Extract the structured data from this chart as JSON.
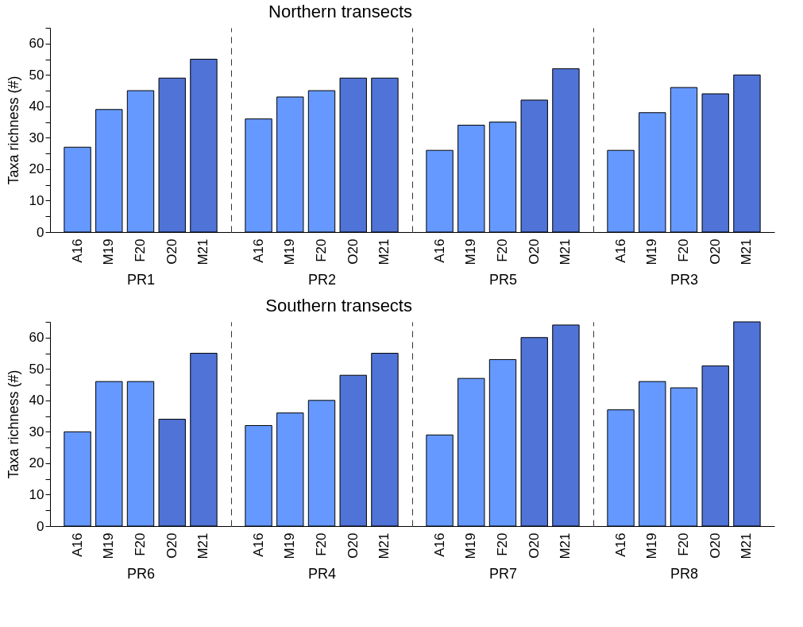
{
  "chart_data": [
    {
      "type": "bar",
      "ylabel": "Taxa richness (#)",
      "xlabel": "PR1",
      "categories": [
        "A16",
        "M19",
        "F20",
        "O20",
        "M21"
      ],
      "values": [
        27,
        39,
        45,
        49,
        55
      ],
      "colors": [
        "#6699ff",
        "#6699ff",
        "#6699ff",
        "#4f73d6",
        "#4f73d6"
      ],
      "ylim": [
        0,
        65
      ],
      "yticks": [
        0,
        {
          "value": 5,
          "label": null
        },
        10,
        {
          "value": 15,
          "label": null
        },
        20,
        {
          "value": 25,
          "label": null
        },
        30,
        {
          "value": 35,
          "label": null
        },
        40,
        {
          "value": 45,
          "label": null
        },
        50,
        {
          "value": 55,
          "label": null
        },
        60,
        {
          "value": 65,
          "label": null
        }
      ]
    },
    {
      "type": "bar",
      "title": "Northern transects",
      "xlabel": "PR2",
      "categories": [
        "A16",
        "M19",
        "F20",
        "O20",
        "M21"
      ],
      "values": [
        36,
        43,
        45,
        49,
        49
      ],
      "colors": [
        "#6699ff",
        "#6699ff",
        "#6699ff",
        "#4f73d6",
        "#4f73d6"
      ],
      "ylim": [
        0,
        65
      ],
      "tick_labels": "x"
    },
    {
      "type": "bar",
      "xlabel": "PR5",
      "categories": [
        "A16",
        "M19",
        "F20",
        "O20",
        "M21"
      ],
      "values": [
        26,
        34,
        35,
        42,
        52
      ],
      "colors": [
        "#6699ff",
        "#6699ff",
        "#6699ff",
        "#4f73d6",
        "#4f73d6"
      ],
      "ylim": [
        0,
        65
      ],
      "tick_labels": "x"
    },
    {
      "type": "bar",
      "xlabel": "PR3",
      "categories": [
        "A16",
        "M19",
        "F20",
        "O20",
        "M21"
      ],
      "values": [
        26,
        38,
        46,
        44,
        50
      ],
      "colors": [
        "#6699ff",
        "#6699ff",
        "#6699ff",
        "#4f73d6",
        "#4f73d6"
      ],
      "ylim": [
        0,
        65
      ],
      "tick_labels": "x"
    },
    {
      "type": "bar",
      "ylabel": "Taxa richness (#)",
      "xlabel": "PR6",
      "categories": [
        "A16",
        "M19",
        "F20",
        "O20",
        "M21"
      ],
      "values": [
        30,
        46,
        46,
        34,
        55
      ],
      "colors": [
        "#6699ff",
        "#6699ff",
        "#6699ff",
        "#4f73d6",
        "#4f73d6"
      ],
      "ylim": [
        0,
        65
      ],
      "yticks": [
        0,
        {
          "value": 5,
          "label": null
        },
        10,
        {
          "value": 15,
          "label": null
        },
        20,
        {
          "value": 25,
          "label": null
        },
        30,
        {
          "value": 35,
          "label": null
        },
        40,
        {
          "value": 45,
          "label": null
        },
        50,
        {
          "value": 55,
          "label": null
        },
        60,
        {
          "value": 65,
          "label": null
        }
      ]
    },
    {
      "type": "bar",
      "title": "Southern transects",
      "xlabel": "PR4",
      "categories": [
        "A16",
        "M19",
        "F20",
        "O20",
        "M21"
      ],
      "values": [
        32,
        36,
        40,
        48,
        55
      ],
      "colors": [
        "#6699ff",
        "#6699ff",
        "#6699ff",
        "#4f73d6",
        "#4f73d6"
      ],
      "ylim": [
        0,
        65
      ],
      "tick_labels": "x"
    },
    {
      "type": "bar",
      "xlabel": "PR7",
      "categories": [
        "A16",
        "M19",
        "F20",
        "O20",
        "M21"
      ],
      "values": [
        29,
        47,
        53,
        60,
        64
      ],
      "colors": [
        "#6699ff",
        "#6699ff",
        "#6699ff",
        "#4f73d6",
        "#4f73d6"
      ],
      "ylim": [
        0,
        65
      ],
      "tick_labels": "x"
    },
    {
      "type": "bar",
      "xlabel": "PR8",
      "categories": [
        "A16",
        "M19",
        "F20",
        "O20",
        "M21"
      ],
      "values": [
        37,
        46,
        44,
        51,
        65
      ],
      "colors": [
        "#6699ff",
        "#6699ff",
        "#6699ff",
        "#4f73d6",
        "#4f73d6"
      ],
      "ylim": [
        0,
        65
      ],
      "tick_labels": "x"
    }
  ]
}
